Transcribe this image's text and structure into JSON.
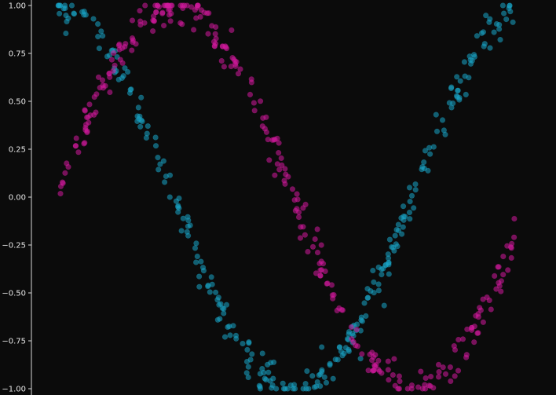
{
  "chart_data": {
    "type": "scatter",
    "title": "",
    "xlabel": "",
    "ylabel": "",
    "xlim": [
      0,
      6.283
    ],
    "ylim": [
      -1.0,
      1.0
    ],
    "yticks": [
      "1.00",
      "0.75",
      "0.50",
      "0.25",
      "0.00",
      "−0.25",
      "−0.50",
      "−0.75",
      "−1.00"
    ],
    "ytick_values": [
      1.0,
      0.75,
      0.5,
      0.25,
      0.0,
      -0.25,
      -0.5,
      -0.75,
      -1.0
    ],
    "grid": false,
    "legend": "none",
    "background": "#0b0b0b",
    "series": [
      {
        "color": "#1aa6c9",
        "function": "cos(x) plus noise",
        "points": 300,
        "x_range": [
          0,
          6.07
        ],
        "noise_sd": 0.05
      },
      {
        "color": "#d4199f",
        "function": "sin(x) plus noise",
        "points": 300,
        "x_range": [
          0,
          6.07
        ],
        "noise_sd": 0.05
      }
    ]
  }
}
